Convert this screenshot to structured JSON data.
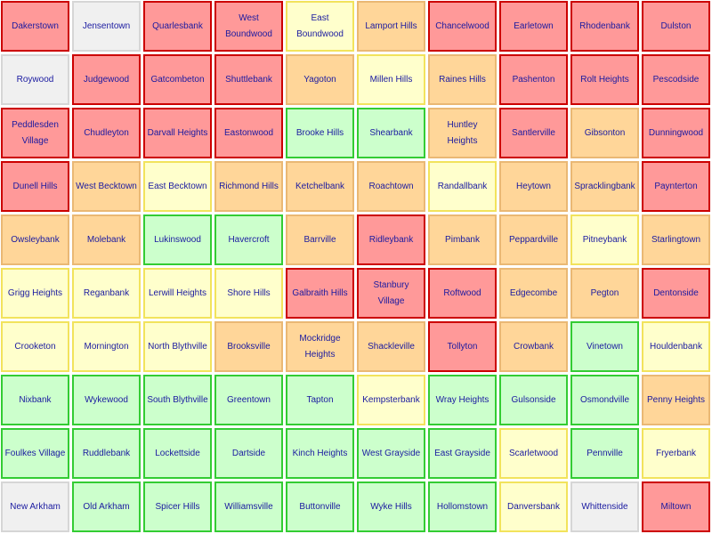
{
  "palette": {
    "red": {
      "fill": "#ff9999",
      "border": "#cc0000"
    },
    "orange": {
      "fill": "#ffd699",
      "border": "#eab874"
    },
    "yellow": {
      "fill": "#ffffcc",
      "border": "#f2e35c"
    },
    "green": {
      "fill": "#ccffcc",
      "border": "#33cc33"
    },
    "gray": {
      "fill": "#f0f0f0",
      "border": "#d6d6d6"
    }
  },
  "rows": [
    [
      {
        "name": "Dakerstown",
        "status": "red"
      },
      {
        "name": "Jensentown",
        "status": "gray"
      },
      {
        "name": "Quarlesbank",
        "status": "red"
      },
      {
        "name": "West Boundwood",
        "status": "red"
      },
      {
        "name": "East Boundwood",
        "status": "yellow"
      },
      {
        "name": "Lamport Hills",
        "status": "orange"
      },
      {
        "name": "Chancelwood",
        "status": "red"
      },
      {
        "name": "Earletown",
        "status": "red"
      },
      {
        "name": "Rhodenbank",
        "status": "red"
      },
      {
        "name": "Dulston",
        "status": "red"
      }
    ],
    [
      {
        "name": "Roywood",
        "status": "gray"
      },
      {
        "name": "Judgewood",
        "status": "red"
      },
      {
        "name": "Gatcombeton",
        "status": "red"
      },
      {
        "name": "Shuttlebank",
        "status": "red"
      },
      {
        "name": "Yagoton",
        "status": "orange"
      },
      {
        "name": "Millen Hills",
        "status": "yellow"
      },
      {
        "name": "Raines Hills",
        "status": "orange"
      },
      {
        "name": "Pashenton",
        "status": "red"
      },
      {
        "name": "Rolt Heights",
        "status": "red"
      },
      {
        "name": "Pescodside",
        "status": "red"
      }
    ],
    [
      {
        "name": "Peddlesden Village",
        "status": "red"
      },
      {
        "name": "Chudleyton",
        "status": "red"
      },
      {
        "name": "Darvall Heights",
        "status": "red"
      },
      {
        "name": "Eastonwood",
        "status": "red"
      },
      {
        "name": "Brooke Hills",
        "status": "green"
      },
      {
        "name": "Shearbank",
        "status": "green"
      },
      {
        "name": "Huntley Heights",
        "status": "orange"
      },
      {
        "name": "Santlerville",
        "status": "red"
      },
      {
        "name": "Gibsonton",
        "status": "orange"
      },
      {
        "name": "Dunningwood",
        "status": "red"
      }
    ],
    [
      {
        "name": "Dunell Hills",
        "status": "red"
      },
      {
        "name": "West Becktown",
        "status": "orange"
      },
      {
        "name": "East Becktown",
        "status": "yellow"
      },
      {
        "name": "Richmond Hills",
        "status": "orange"
      },
      {
        "name": "Ketchelbank",
        "status": "orange"
      },
      {
        "name": "Roachtown",
        "status": "orange"
      },
      {
        "name": "Randallbank",
        "status": "yellow"
      },
      {
        "name": "Heytown",
        "status": "orange"
      },
      {
        "name": "Spracklingbank",
        "status": "orange"
      },
      {
        "name": "Paynterton",
        "status": "red"
      }
    ],
    [
      {
        "name": "Owsleybank",
        "status": "orange"
      },
      {
        "name": "Molebank",
        "status": "orange"
      },
      {
        "name": "Lukinswood",
        "status": "green"
      },
      {
        "name": "Havercroft",
        "status": "green"
      },
      {
        "name": "Barrville",
        "status": "orange"
      },
      {
        "name": "Ridleybank",
        "status": "red"
      },
      {
        "name": "Pimbank",
        "status": "orange"
      },
      {
        "name": "Peppardville",
        "status": "orange"
      },
      {
        "name": "Pitneybank",
        "status": "yellow"
      },
      {
        "name": "Starlingtown",
        "status": "orange"
      }
    ],
    [
      {
        "name": "Grigg Heights",
        "status": "yellow"
      },
      {
        "name": "Reganbank",
        "status": "yellow"
      },
      {
        "name": "Lerwill Heights",
        "status": "yellow"
      },
      {
        "name": "Shore Hills",
        "status": "yellow"
      },
      {
        "name": "Galbraith Hills",
        "status": "red"
      },
      {
        "name": "Stanbury Village",
        "status": "red"
      },
      {
        "name": "Roftwood",
        "status": "red"
      },
      {
        "name": "Edgecombe",
        "status": "orange"
      },
      {
        "name": "Pegton",
        "status": "orange"
      },
      {
        "name": "Dentonside",
        "status": "red"
      }
    ],
    [
      {
        "name": "Crooketon",
        "status": "yellow"
      },
      {
        "name": "Mornington",
        "status": "yellow"
      },
      {
        "name": "North Blythville",
        "status": "yellow"
      },
      {
        "name": "Brooksville",
        "status": "orange"
      },
      {
        "name": "Mockridge Heights",
        "status": "orange"
      },
      {
        "name": "Shackleville",
        "status": "orange"
      },
      {
        "name": "Tollyton",
        "status": "red"
      },
      {
        "name": "Crowbank",
        "status": "orange"
      },
      {
        "name": "Vinetown",
        "status": "green"
      },
      {
        "name": "Houldenbank",
        "status": "yellow"
      }
    ],
    [
      {
        "name": "Nixbank",
        "status": "green"
      },
      {
        "name": "Wykewood",
        "status": "green"
      },
      {
        "name": "South Blythville",
        "status": "green"
      },
      {
        "name": "Greentown",
        "status": "green"
      },
      {
        "name": "Tapton",
        "status": "green"
      },
      {
        "name": "Kempsterbank",
        "status": "yellow"
      },
      {
        "name": "Wray Heights",
        "status": "green"
      },
      {
        "name": "Gulsonside",
        "status": "green"
      },
      {
        "name": "Osmondville",
        "status": "green"
      },
      {
        "name": "Penny Heights",
        "status": "orange"
      }
    ],
    [
      {
        "name": "Foulkes Village",
        "status": "green"
      },
      {
        "name": "Ruddlebank",
        "status": "green"
      },
      {
        "name": "Lockettside",
        "status": "green"
      },
      {
        "name": "Dartside",
        "status": "green"
      },
      {
        "name": "Kinch Heights",
        "status": "green"
      },
      {
        "name": "West Grayside",
        "status": "green"
      },
      {
        "name": "East Grayside",
        "status": "green"
      },
      {
        "name": "Scarletwood",
        "status": "yellow"
      },
      {
        "name": "Pennville",
        "status": "green"
      },
      {
        "name": "Fryerbank",
        "status": "yellow"
      }
    ],
    [
      {
        "name": "New Arkham",
        "status": "gray"
      },
      {
        "name": "Old Arkham",
        "status": "green"
      },
      {
        "name": "Spicer Hills",
        "status": "green"
      },
      {
        "name": "Williamsville",
        "status": "green"
      },
      {
        "name": "Buttonville",
        "status": "green"
      },
      {
        "name": "Wyke Hills",
        "status": "green"
      },
      {
        "name": "Hollomstown",
        "status": "green"
      },
      {
        "name": "Danversbank",
        "status": "yellow"
      },
      {
        "name": "Whittenside",
        "status": "gray"
      },
      {
        "name": "Miltown",
        "status": "red"
      }
    ]
  ]
}
